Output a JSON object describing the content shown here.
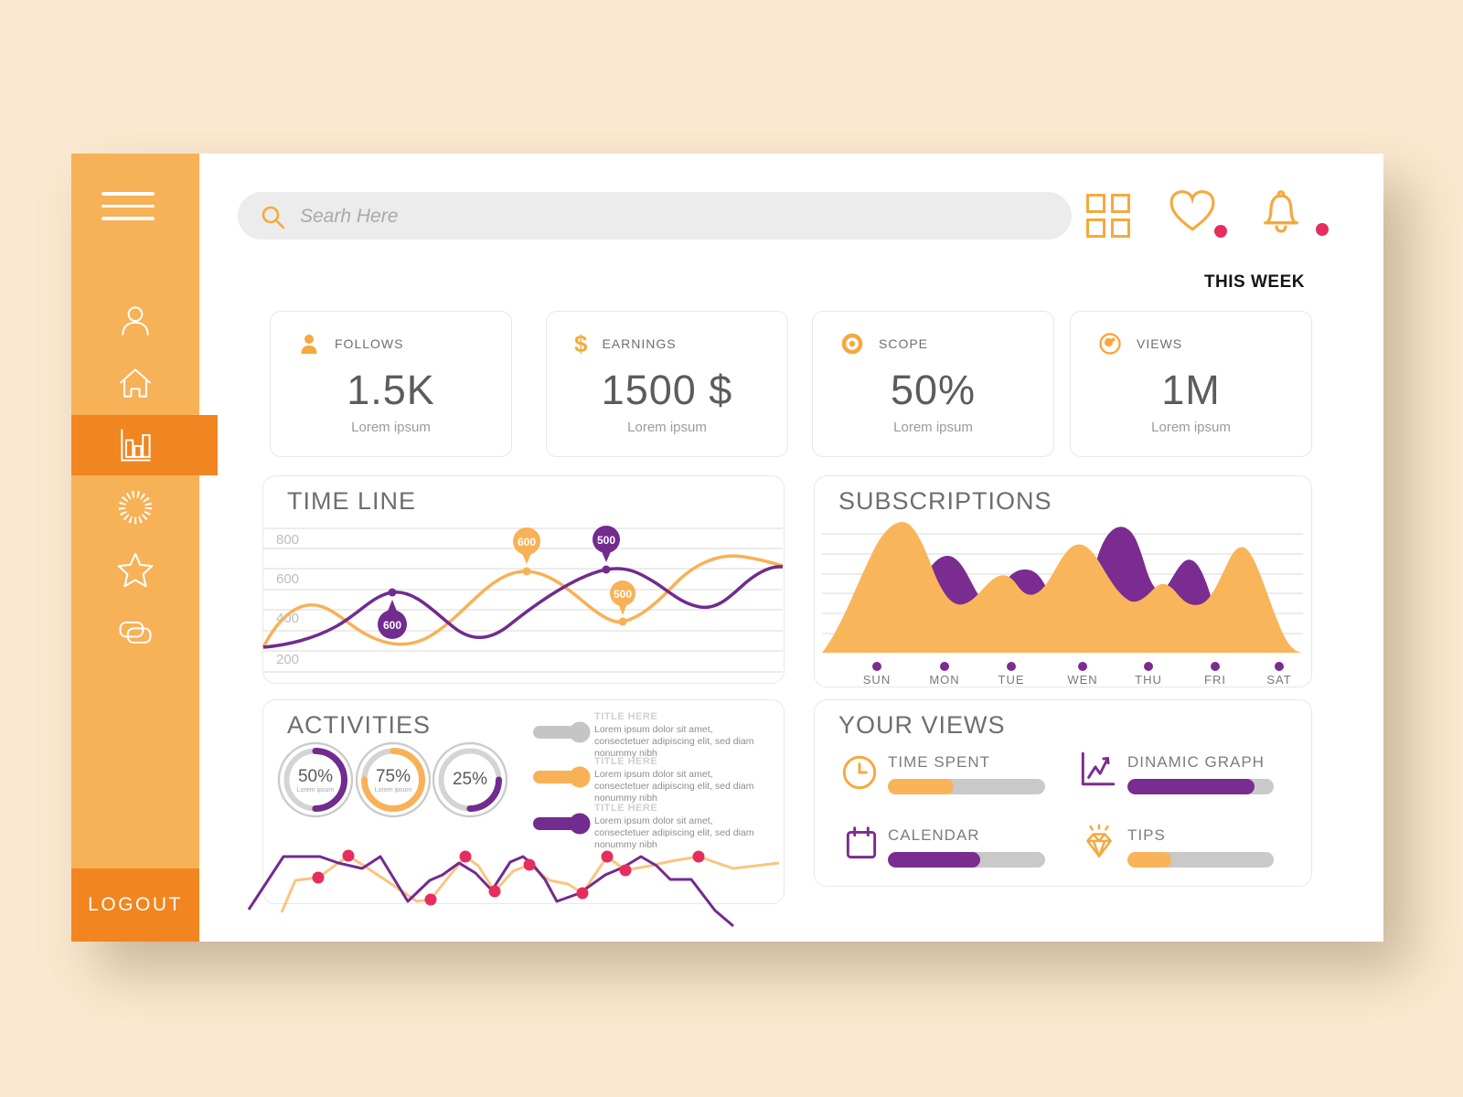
{
  "header": {
    "search_placeholder": "Searh Here",
    "period_label": "THIS WEEK"
  },
  "sidebar": {
    "logout_label": "LOGOUT",
    "items": [
      {
        "name": "profile"
      },
      {
        "name": "home"
      },
      {
        "name": "analytics",
        "active": true
      },
      {
        "name": "loader"
      },
      {
        "name": "favorites"
      },
      {
        "name": "cards"
      }
    ]
  },
  "stats": [
    {
      "icon": "user",
      "label": "FOLLOWS",
      "value": "1.5K",
      "caption": "Lorem ipsum"
    },
    {
      "icon": "dollar",
      "label": "EARNINGS",
      "value": "1500 $",
      "caption": "Lorem ipsum"
    },
    {
      "icon": "target",
      "label": "SCOPE",
      "value": "50%",
      "caption": "Lorem ipsum"
    },
    {
      "icon": "eye",
      "label": "VIEWS",
      "value": "1M",
      "caption": "Lorem ipsum"
    }
  ],
  "timeline": {
    "title": "TIME LINE",
    "y_labels": [
      "800",
      "600",
      "400",
      "200"
    ],
    "markers": [
      {
        "label": "600",
        "series": "purple"
      },
      {
        "label": "600",
        "series": "orange"
      },
      {
        "label": "500",
        "series": "purple"
      },
      {
        "label": "500",
        "series": "orange"
      }
    ]
  },
  "subscriptions": {
    "title": "SUBSCRIPTIONS",
    "days": [
      "SUN",
      "MON",
      "TUE",
      "WEN",
      "THU",
      "FRI",
      "SAT"
    ]
  },
  "activities": {
    "title": "ACTIVITIES",
    "donuts": [
      {
        "label": "50%",
        "value": 50,
        "caption": "Lorem ipsum",
        "color": "purple"
      },
      {
        "label": "75%",
        "value": 75,
        "caption": "Lorem ipsum",
        "color": "orange"
      },
      {
        "label": "25%",
        "value": 25,
        "caption": "",
        "color": "purple"
      }
    ],
    "items": [
      {
        "title": "TITLE HERE",
        "body": "Lorem ipsum dolor sit amet, consectetuer adipiscing elit, sed diam nonummy nibh",
        "color": "gray"
      },
      {
        "title": "TITLE HERE",
        "body": "Lorem ipsum dolor sit amet, consectetuer adipiscing elit, sed diam nonummy nibh",
        "color": "orange"
      },
      {
        "title": "TITLE HERE",
        "body": "Lorem ipsum dolor sit amet, consectetuer adipiscing elit, sed diam nonummy nibh",
        "color": "purple"
      }
    ]
  },
  "your_views": {
    "title": "YOUR VIEWS",
    "items": [
      {
        "icon": "clock",
        "label": "TIME SPENT",
        "value": 42,
        "color": "orange"
      },
      {
        "icon": "graph",
        "label": "DINAMIC GRAPH",
        "value": 87,
        "color": "purple"
      },
      {
        "icon": "calendar",
        "label": "CALENDAR",
        "value": 59,
        "color": "purple"
      },
      {
        "icon": "diamond",
        "label": "TIPS",
        "value": 30,
        "color": "orange"
      }
    ]
  },
  "colors": {
    "background": "#fae9d0",
    "sidebar": "#f7b157",
    "accent_orange": "#f5a93d",
    "dark_orange": "#f1851f",
    "chart_orange": "#f8b156",
    "purple": "#7b2c90",
    "red_dot": "#e62d5d"
  },
  "chart_data": [
    {
      "type": "line",
      "title": "TIME LINE",
      "y_ticks": [
        200,
        400,
        600,
        800
      ],
      "series": [
        {
          "name": "orange",
          "approx_values": [
            270,
            480,
            400,
            340,
            450,
            600,
            500,
            560,
            660,
            690
          ]
        },
        {
          "name": "purple",
          "approx_values": [
            270,
            330,
            560,
            430,
            520,
            660,
            690,
            630,
            600,
            680
          ]
        }
      ],
      "point_labels": [
        {
          "series": "purple",
          "value": 600
        },
        {
          "series": "orange",
          "value": 600
        },
        {
          "series": "purple",
          "value": 500
        },
        {
          "series": "orange",
          "value": 500
        }
      ]
    },
    {
      "type": "area",
      "title": "SUBSCRIPTIONS",
      "categories": [
        "SUN",
        "MON",
        "TUE",
        "WEN",
        "THU",
        "FRI",
        "SAT"
      ],
      "series": [
        {
          "name": "orange",
          "values": [
            90,
            35,
            55,
            72,
            40,
            45,
            75
          ]
        },
        {
          "name": "purple",
          "values": [
            20,
            68,
            55,
            30,
            82,
            62,
            25
          ]
        }
      ]
    },
    {
      "type": "donut",
      "title": "ACTIVITIES",
      "categories": [
        "ring-1",
        "ring-2",
        "ring-3"
      ],
      "values": [
        50,
        75,
        25
      ]
    },
    {
      "type": "progress",
      "title": "YOUR VIEWS",
      "categories": [
        "TIME SPENT",
        "DINAMIC GRAPH",
        "CALENDAR",
        "TIPS"
      ],
      "values": [
        42,
        87,
        59,
        30
      ]
    }
  ]
}
